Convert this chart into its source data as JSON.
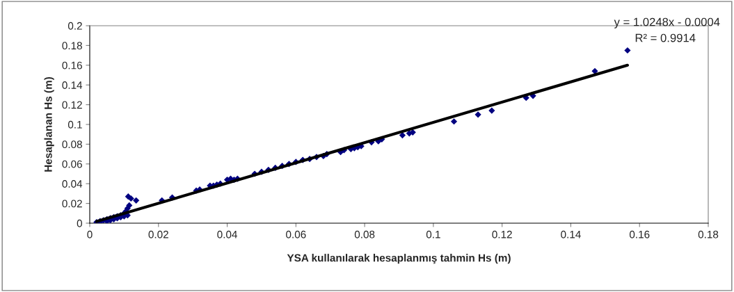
{
  "chart_data": {
    "type": "scatter",
    "xlabel": "YSA kullanılarak hesaplanmış tahmin Hs (m)",
    "ylabel": "Hesaplanan Hs (m)",
    "annotations": [
      "y = 1.0248x - 0.0004",
      "R² = 0.9914"
    ],
    "xlim": [
      0,
      0.18
    ],
    "xticks": [
      0,
      0.02,
      0.04,
      0.06,
      0.08,
      0.1,
      0.12,
      0.14,
      0.16,
      0.18
    ],
    "ylim": [
      0,
      0.2
    ],
    "yticks": [
      0,
      0.02,
      0.04,
      0.06,
      0.08,
      0.1,
      0.12,
      0.14,
      0.16,
      0.18,
      0.2
    ],
    "grid": false,
    "legend": false,
    "marker": "diamond",
    "series": [
      {
        "color": "#000080",
        "x": [
          0.002,
          0.003,
          0.003,
          0.004,
          0.005,
          0.005,
          0.006,
          0.006,
          0.007,
          0.007,
          0.008,
          0.008,
          0.009,
          0.009,
          0.01,
          0.01,
          0.0105,
          0.011,
          0.011,
          0.0115,
          0.0112,
          0.012,
          0.0135,
          0.021,
          0.024,
          0.031,
          0.032,
          0.035,
          0.036,
          0.037,
          0.038,
          0.04,
          0.041,
          0.042,
          0.043,
          0.048,
          0.05,
          0.052,
          0.054,
          0.056,
          0.058,
          0.06,
          0.062,
          0.064,
          0.066,
          0.068,
          0.069,
          0.073,
          0.074,
          0.076,
          0.077,
          0.078,
          0.079,
          0.082,
          0.084,
          0.085,
          0.091,
          0.093,
          0.094,
          0.106,
          0.113,
          0.117,
          0.127,
          0.129,
          0.147,
          0.1565
        ],
        "values": [
          0.001,
          0.002,
          0.001,
          0.003,
          0.004,
          0.002,
          0.005,
          0.003,
          0.006,
          0.004,
          0.007,
          0.005,
          0.008,
          0.006,
          0.01,
          0.007,
          0.012,
          0.015,
          0.008,
          0.018,
          0.027,
          0.025,
          0.023,
          0.023,
          0.026,
          0.033,
          0.034,
          0.038,
          0.038,
          0.039,
          0.04,
          0.044,
          0.045,
          0.044,
          0.045,
          0.05,
          0.052,
          0.054,
          0.056,
          0.058,
          0.06,
          0.062,
          0.064,
          0.065,
          0.067,
          0.068,
          0.07,
          0.072,
          0.074,
          0.075,
          0.076,
          0.077,
          0.078,
          0.082,
          0.083,
          0.085,
          0.089,
          0.091,
          0.092,
          0.103,
          0.11,
          0.114,
          0.127,
          0.129,
          0.154,
          0.175
        ]
      },
      {
        "type": "line",
        "color": "#000000",
        "marker": "none",
        "x": [
          0.002,
          0.1565
        ],
        "values": [
          0.0017,
          0.16
        ]
      }
    ]
  }
}
